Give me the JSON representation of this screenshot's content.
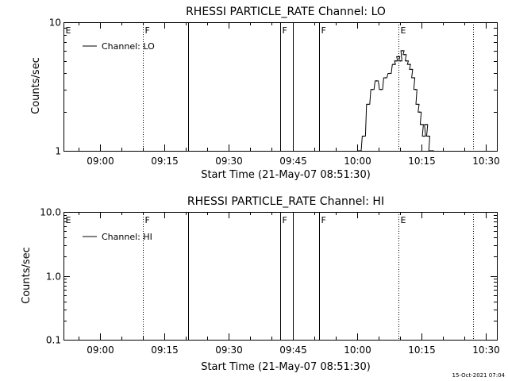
{
  "chart_data": [
    {
      "type": "line",
      "title": "RHESSI PARTICLE_RATE Channel: LO",
      "xlabel": "Start Time (21-May-07 08:51:30)",
      "ylabel": "Counts/sec",
      "yscale": "log",
      "xlim": [
        "08:51:30",
        "10:32:30"
      ],
      "ylim": [
        1,
        10
      ],
      "xticks": [
        "09:00",
        "09:15",
        "09:30",
        "09:45",
        "10:00",
        "10:15",
        "10:30"
      ],
      "yticks": [
        "1",
        "10"
      ],
      "legend": {
        "position": "top-left",
        "entries": [
          "Channel: LO"
        ]
      },
      "series": [
        {
          "name": "Channel: LO",
          "x": [
            "10:00:30",
            "10:01:30",
            "10:02:30",
            "10:03:30",
            "10:04:30",
            "10:05:30",
            "10:06:30",
            "10:07:30",
            "10:08:30",
            "10:09:00",
            "10:09:30",
            "10:10:00",
            "10:10:30",
            "10:11:00",
            "10:11:30",
            "10:12:00",
            "10:12:30",
            "10:13:00",
            "10:13:30",
            "10:14:00",
            "10:14:30",
            "10:15:00",
            "10:15:30",
            "10:16:00",
            "10:16:30",
            "10:17:00",
            "10:17:30"
          ],
          "y": [
            1,
            1.3,
            2.3,
            3.0,
            3.5,
            3.0,
            3.7,
            4.0,
            4.7,
            5.0,
            5.4,
            5.0,
            6.0,
            5.6,
            5.0,
            4.7,
            4.3,
            3.7,
            3.0,
            2.3,
            2.0,
            1.6,
            1.3,
            1.6,
            1.3,
            1.0,
            1.0
          ]
        }
      ],
      "annotations": [
        {
          "label": "E",
          "time": "08:51:30",
          "style": "none"
        },
        {
          "label": "F",
          "time": "09:10:00",
          "style": "dotted"
        },
        {
          "label": "",
          "time": "09:20:30",
          "style": "solid"
        },
        {
          "label": "F",
          "time": "09:42:00",
          "style": "solid"
        },
        {
          "label": "",
          "time": "09:45:00",
          "style": "solid"
        },
        {
          "label": "F",
          "time": "09:51:00",
          "style": "solid"
        },
        {
          "label": "E",
          "time": "10:09:30",
          "style": "dotted"
        },
        {
          "label": "",
          "time": "10:27:00",
          "style": "dotted"
        }
      ]
    },
    {
      "type": "line",
      "title": "RHESSI PARTICLE_RATE Channel: HI",
      "xlabel": "Start Time (21-May-07 08:51:30)",
      "ylabel": "Counts/sec",
      "yscale": "log",
      "xlim": [
        "08:51:30",
        "10:32:30"
      ],
      "ylim": [
        0.1,
        10
      ],
      "xticks": [
        "09:00",
        "09:15",
        "09:30",
        "09:45",
        "10:00",
        "10:15",
        "10:30"
      ],
      "yticks": [
        "0.1",
        "1.0",
        "10.0"
      ],
      "legend": {
        "position": "top-left",
        "entries": [
          "Channel: HI"
        ]
      },
      "series": [
        {
          "name": "Channel: HI",
          "x": [],
          "y": []
        }
      ],
      "annotations": [
        {
          "label": "E",
          "time": "08:51:30",
          "style": "none"
        },
        {
          "label": "F",
          "time": "09:10:00",
          "style": "dotted"
        },
        {
          "label": "",
          "time": "09:20:30",
          "style": "solid"
        },
        {
          "label": "F",
          "time": "09:42:00",
          "style": "solid"
        },
        {
          "label": "",
          "time": "09:45:00",
          "style": "solid"
        },
        {
          "label": "F",
          "time": "09:51:00",
          "style": "solid"
        },
        {
          "label": "E",
          "time": "10:09:30",
          "style": "dotted"
        },
        {
          "label": "",
          "time": "10:27:00",
          "style": "dotted"
        }
      ]
    }
  ],
  "footer": {
    "timestamp": "15-Oct-2021 07:04"
  }
}
